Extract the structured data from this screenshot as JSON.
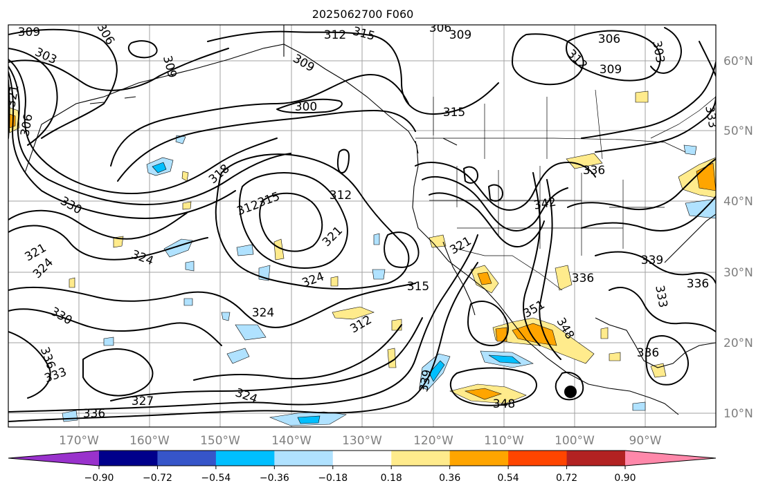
{
  "title": "2025062700 F060",
  "lon_labels": [
    "170°W",
    "160°W",
    "150°W",
    "140°W",
    "130°W",
    "120°W",
    "110°W",
    "100°W",
    "90°W"
  ],
  "lat_labels": [
    "60°N",
    "50°N",
    "40°N",
    "30°N",
    "20°N",
    "10°N"
  ],
  "colorbar": {
    "ticks": [
      "−0.90",
      "−0.72",
      "−0.54",
      "−0.36",
      "−0.18",
      "0.18",
      "0.36",
      "0.54",
      "0.72",
      "0.90"
    ],
    "colors": [
      "#9932cc",
      "#00008b",
      "#3655c9",
      "#00bfff",
      "#b0e2ff",
      "#ffffff",
      "#ffeb8c",
      "#ffa500",
      "#ff4500",
      "#b22222",
      "#ff88aa"
    ]
  },
  "contour_labels": [
    {
      "text": "309"
    },
    {
      "text": "306"
    },
    {
      "text": "303"
    },
    {
      "text": "309"
    },
    {
      "text": "312"
    },
    {
      "text": "315"
    },
    {
      "text": "306"
    },
    {
      "text": "309"
    },
    {
      "text": "306"
    },
    {
      "text": "303"
    },
    {
      "text": "312"
    },
    {
      "text": "309"
    },
    {
      "text": "321"
    },
    {
      "text": "306"
    },
    {
      "text": "309"
    },
    {
      "text": "300"
    },
    {
      "text": "315"
    },
    {
      "text": "318"
    },
    {
      "text": "330"
    },
    {
      "text": "312"
    },
    {
      "text": "315"
    },
    {
      "text": "312"
    },
    {
      "text": "321"
    },
    {
      "text": "324"
    },
    {
      "text": "321"
    },
    {
      "text": "324"
    },
    {
      "text": "324"
    },
    {
      "text": "330"
    },
    {
      "text": "324"
    },
    {
      "text": "312"
    },
    {
      "text": "315"
    },
    {
      "text": "321"
    },
    {
      "text": "336"
    },
    {
      "text": "333"
    },
    {
      "text": "327"
    },
    {
      "text": "324"
    },
    {
      "text": "336"
    },
    {
      "text": "339"
    },
    {
      "text": "348"
    },
    {
      "text": "351"
    },
    {
      "text": "348"
    },
    {
      "text": "342"
    },
    {
      "text": "339"
    },
    {
      "text": "336"
    },
    {
      "text": "333"
    },
    {
      "text": "336"
    },
    {
      "text": "336"
    },
    {
      "text": "336"
    },
    {
      "text": "333"
    }
  ],
  "marker": "storm-center"
}
